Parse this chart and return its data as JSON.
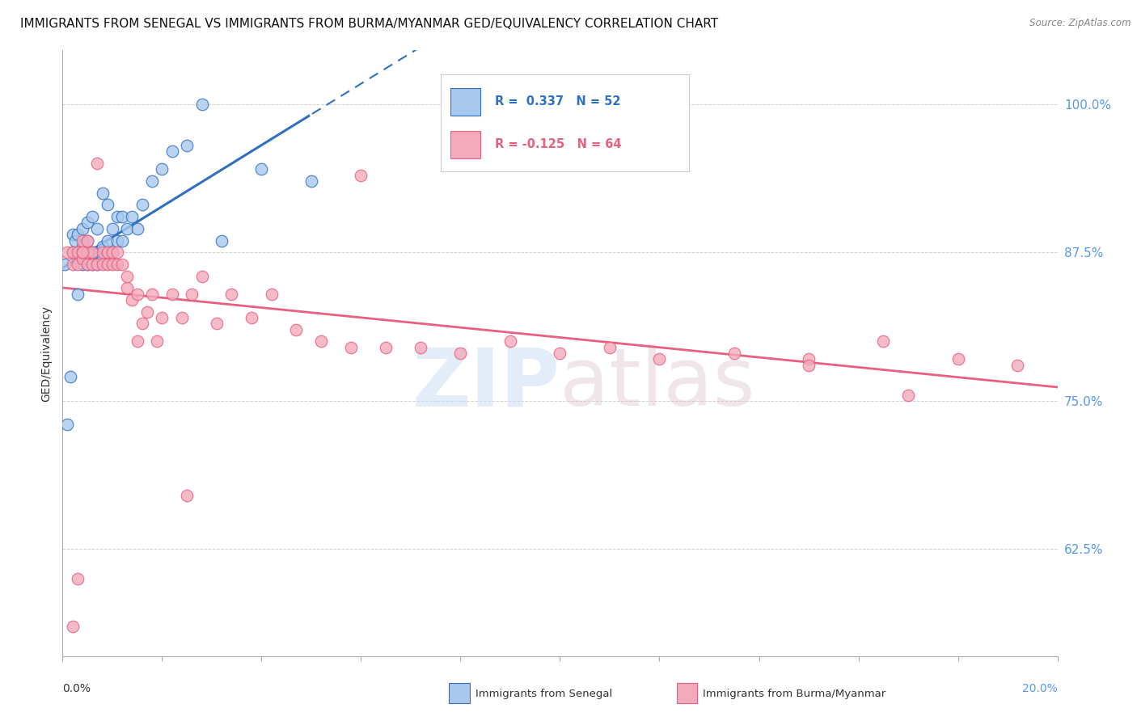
{
  "title": "IMMIGRANTS FROM SENEGAL VS IMMIGRANTS FROM BURMA/MYANMAR GED/EQUIVALENCY CORRELATION CHART",
  "source": "Source: ZipAtlas.com",
  "ylabel": "GED/Equivalency",
  "xlim": [
    0.0,
    0.2
  ],
  "ylim": [
    0.535,
    1.045
  ],
  "senegal_color": "#A8C8EE",
  "burma_color": "#F4AABC",
  "line_senegal_color": "#3070C0",
  "line_burma_color": "#E86080",
  "senegal_x": [
    0.0005,
    0.001,
    0.0015,
    0.002,
    0.002,
    0.0025,
    0.003,
    0.003,
    0.003,
    0.0035,
    0.004,
    0.004,
    0.004,
    0.004,
    0.0045,
    0.005,
    0.005,
    0.005,
    0.005,
    0.0055,
    0.006,
    0.006,
    0.006,
    0.0065,
    0.007,
    0.007,
    0.007,
    0.0075,
    0.008,
    0.008,
    0.008,
    0.009,
    0.009,
    0.009,
    0.01,
    0.01,
    0.011,
    0.011,
    0.012,
    0.012,
    0.013,
    0.014,
    0.015,
    0.016,
    0.018,
    0.02,
    0.022,
    0.025,
    0.028,
    0.032,
    0.04,
    0.05
  ],
  "senegal_y": [
    0.865,
    0.73,
    0.77,
    0.875,
    0.89,
    0.885,
    0.87,
    0.89,
    0.84,
    0.875,
    0.865,
    0.875,
    0.88,
    0.895,
    0.875,
    0.865,
    0.875,
    0.885,
    0.9,
    0.875,
    0.865,
    0.875,
    0.905,
    0.875,
    0.865,
    0.875,
    0.895,
    0.875,
    0.87,
    0.88,
    0.925,
    0.875,
    0.885,
    0.915,
    0.875,
    0.895,
    0.885,
    0.905,
    0.885,
    0.905,
    0.895,
    0.905,
    0.895,
    0.915,
    0.935,
    0.945,
    0.96,
    0.965,
    1.0,
    0.885,
    0.945,
    0.935
  ],
  "burma_x": [
    0.001,
    0.002,
    0.002,
    0.003,
    0.003,
    0.004,
    0.004,
    0.004,
    0.005,
    0.005,
    0.005,
    0.006,
    0.006,
    0.007,
    0.007,
    0.008,
    0.008,
    0.009,
    0.009,
    0.01,
    0.01,
    0.011,
    0.011,
    0.012,
    0.013,
    0.013,
    0.014,
    0.015,
    0.015,
    0.016,
    0.017,
    0.018,
    0.019,
    0.02,
    0.022,
    0.024,
    0.026,
    0.028,
    0.031,
    0.034,
    0.038,
    0.042,
    0.047,
    0.052,
    0.058,
    0.065,
    0.072,
    0.08,
    0.09,
    0.1,
    0.11,
    0.12,
    0.135,
    0.15,
    0.165,
    0.18,
    0.192,
    0.003,
    0.004,
    0.025,
    0.06,
    0.15,
    0.17,
    0.002
  ],
  "burma_y": [
    0.875,
    0.865,
    0.875,
    0.865,
    0.875,
    0.87,
    0.875,
    0.885,
    0.865,
    0.875,
    0.885,
    0.865,
    0.875,
    0.865,
    0.95,
    0.865,
    0.875,
    0.865,
    0.875,
    0.865,
    0.875,
    0.865,
    0.875,
    0.865,
    0.845,
    0.855,
    0.835,
    0.84,
    0.8,
    0.815,
    0.825,
    0.84,
    0.8,
    0.82,
    0.84,
    0.82,
    0.84,
    0.855,
    0.815,
    0.84,
    0.82,
    0.84,
    0.81,
    0.8,
    0.795,
    0.795,
    0.795,
    0.79,
    0.8,
    0.79,
    0.795,
    0.785,
    0.79,
    0.785,
    0.8,
    0.785,
    0.78,
    0.6,
    0.875,
    0.67,
    0.94,
    0.78,
    0.755,
    0.56
  ],
  "title_fontsize": 11,
  "axis_label_fontsize": 10,
  "tick_fontsize": 10,
  "right_tick_color": "#5599EE"
}
